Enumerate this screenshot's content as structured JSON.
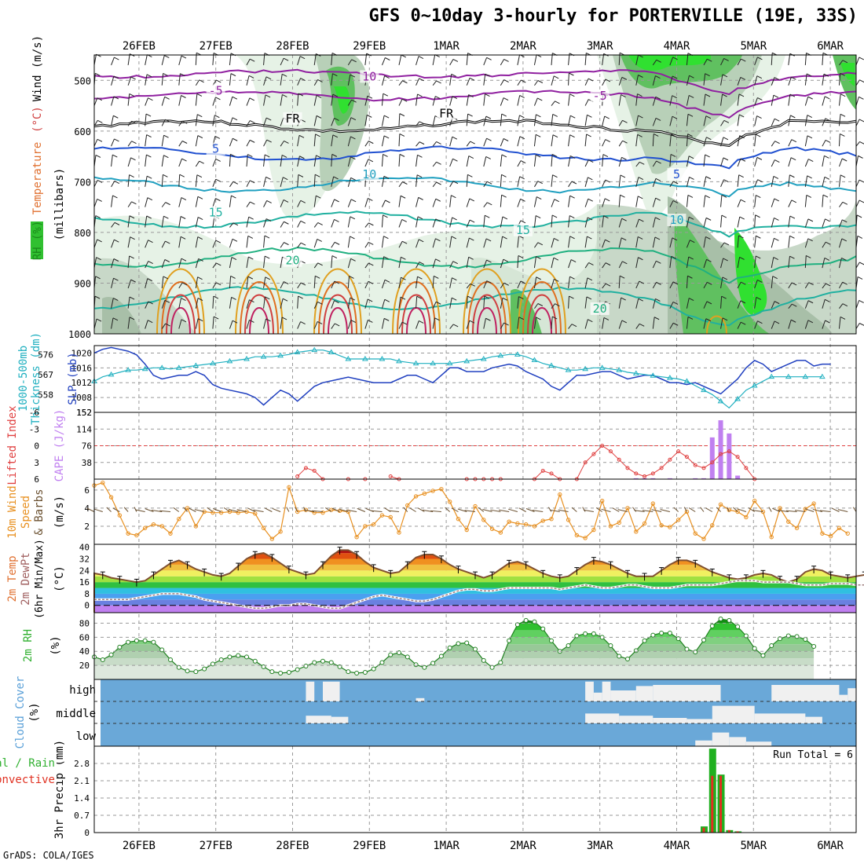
{
  "title": "GFS 0~10day 3-hourly for PORTERVILLE (19E, 33S)",
  "credit": "GrADS: COLA/IGES",
  "dates": [
    "26FEB",
    "27FEB",
    "28FEB",
    "29FEB",
    "1MAR",
    "2MAR",
    "3MAR",
    "4MAR",
    "5MAR",
    "6MAR"
  ],
  "chart_data": [
    {
      "type": "heatmap",
      "panel": "upper-air",
      "ylabel_parts": [
        {
          "text": "RH (%)",
          "color": "#1a8a1a"
        },
        {
          "text": "Temperature",
          "color": "#e07030"
        },
        {
          "text": "(°C)",
          "color": "#d04040"
        },
        {
          "text": "Wind (m/s)",
          "color": "#000000"
        }
      ],
      "yunits": "(millibars)",
      "pressure_ticks": [
        500,
        600,
        700,
        800,
        900,
        1000
      ],
      "ylim": [
        1000,
        450
      ],
      "isotherm_labels": [
        {
          "label": "10",
          "color": "#9020a0",
          "x": "29FEB",
          "p": 497
        },
        {
          "label": "-5",
          "color": "#9020a0",
          "x": "27FEB",
          "p": 525
        },
        {
          "label": "-5",
          "color": "#9020a0",
          "x": "3MAR",
          "p": 535
        },
        {
          "label": "FR",
          "color": "#000000",
          "x": "28FEB",
          "p": 580
        },
        {
          "label": "FR",
          "color": "#000000",
          "x": "1MAR",
          "p": 570
        },
        {
          "label": "5",
          "color": "#2050d0",
          "x": "27FEB",
          "p": 640
        },
        {
          "label": "5",
          "color": "#2050d0",
          "x": "4MAR",
          "p": 690
        },
        {
          "label": "10",
          "color": "#20a0c0",
          "x": "29FEB",
          "p": 690
        },
        {
          "label": "10",
          "color": "#20a0c0",
          "x": "4MAR",
          "p": 780
        },
        {
          "label": "15",
          "color": "#20b0a0",
          "x": "27FEB",
          "p": 765
        },
        {
          "label": "15",
          "color": "#20b0a0",
          "x": "2MAR",
          "p": 800
        },
        {
          "label": "20",
          "color": "#20b080",
          "x": "28FEB",
          "p": 860
        },
        {
          "label": "20",
          "color": "#20b080",
          "x": "3MAR",
          "p": 955
        }
      ]
    },
    {
      "type": "line",
      "panel": "slp-thickness",
      "ylabel_left": "1000-500mb Thickness (dm)",
      "ylabel_right": "SLP (mb)",
      "thickness_ticks": [
        558,
        567,
        576
      ],
      "slp_ticks": [
        1008,
        1012,
        1016,
        1020
      ],
      "series": [
        {
          "name": "SLP (mb)",
          "color": "#2040c0",
          "values": [
            1020,
            1021,
            1021.5,
            1021,
            1020.5,
            1019.5,
            1017,
            1014,
            1013,
            1013.5,
            1014,
            1014,
            1015,
            1014,
            1011.5,
            1010.5,
            1010,
            1009.5,
            1009,
            1008,
            1006,
            1008,
            1010,
            1009,
            1007,
            1009,
            1011,
            1012,
            1012.5,
            1013,
            1013.5,
            1013,
            1012.5,
            1012,
            1012,
            1012,
            1013,
            1014,
            1014,
            1013,
            1012,
            1014,
            1016,
            1016,
            1015,
            1015,
            1015,
            1016,
            1016.5,
            1017,
            1016.5,
            1015,
            1014,
            1013,
            1011,
            1010,
            1012,
            1014,
            1014,
            1014.5,
            1015,
            1015,
            1014,
            1013,
            1013.5,
            1014,
            1014,
            1013,
            1012,
            1012,
            1011.5,
            1012,
            1011,
            1010,
            1009,
            1011,
            1013,
            1016,
            1018,
            1017,
            1015,
            1016,
            1017,
            1018,
            1018,
            1016.5,
            1017,
            1017
          ]
        },
        {
          "name": "1000-500mb Thickness (dm)",
          "color": "#20b0c0",
          "values": [
            564,
            566,
            567,
            568,
            569,
            569,
            569.5,
            570,
            570,
            569.5,
            570,
            570.5,
            571,
            571.5,
            572,
            572.5,
            573,
            573.5,
            574,
            575,
            575,
            575,
            575.5,
            576,
            577,
            577.5,
            578,
            578,
            577,
            575.5,
            574,
            574,
            574,
            574,
            574,
            574,
            573,
            572.5,
            572,
            572,
            572,
            572,
            572,
            572.5,
            573,
            573.5,
            574,
            575,
            575.5,
            576,
            576,
            575,
            573.5,
            572,
            571,
            570,
            569,
            569,
            569.5,
            570,
            570,
            569.5,
            569,
            568,
            567.5,
            567,
            566.5,
            566,
            565.5,
            565,
            564,
            562,
            560,
            558,
            555,
            552,
            556,
            560,
            562,
            564,
            566,
            566,
            566,
            566,
            566,
            566,
            566
          ]
        }
      ]
    },
    {
      "type": "bar",
      "panel": "instability",
      "ylabel_left": "Lifted Index",
      "ylabel_right": "CAPE (J/kg)",
      "lifted_index_ticks": [
        -6,
        -3,
        0,
        3,
        6
      ],
      "cape_ticks": [
        38,
        76,
        114,
        152
      ],
      "series": [
        {
          "name": "Lifted Index",
          "color": "#e04040",
          "points": [
            [
              24,
              5.5
            ],
            [
              25,
              4
            ],
            [
              26,
              4.5
            ],
            [
              27,
              6
            ],
            [
              30,
              6
            ],
            [
              32,
              6
            ],
            [
              35,
              5.5
            ],
            [
              36,
              6
            ],
            [
              44,
              6
            ],
            [
              45,
              6
            ],
            [
              46,
              6
            ],
            [
              47,
              6
            ],
            [
              48,
              6
            ],
            [
              52,
              6
            ],
            [
              53,
              4.5
            ],
            [
              54,
              5
            ],
            [
              55,
              6
            ],
            [
              57,
              6
            ],
            [
              58,
              3
            ],
            [
              59,
              1.5
            ],
            [
              60,
              0
            ],
            [
              61,
              1
            ],
            [
              62,
              2.5
            ],
            [
              63,
              4
            ],
            [
              64,
              5
            ],
            [
              65,
              5.5
            ],
            [
              66,
              5
            ],
            [
              67,
              4
            ],
            [
              68,
              2.5
            ],
            [
              69,
              1
            ],
            [
              70,
              2
            ],
            [
              71,
              3.5
            ],
            [
              72,
              4
            ],
            [
              73,
              3
            ],
            [
              74,
              1.5
            ],
            [
              75,
              1
            ],
            [
              76,
              2
            ],
            [
              77,
              4
            ],
            [
              78,
              6
            ]
          ]
        },
        {
          "name": "CAPE (J/kg)",
          "color": "#c080f0",
          "points": [
            [
              64,
              2
            ],
            [
              65,
              2
            ],
            [
              66,
              2
            ],
            [
              68,
              2
            ],
            [
              71,
              2
            ],
            [
              72,
              2
            ],
            [
              73,
              95
            ],
            [
              74,
              134
            ],
            [
              75,
              104
            ],
            [
              76,
              8
            ]
          ]
        }
      ]
    },
    {
      "type": "line",
      "panel": "wind-10m",
      "ylabel": "10m Wind Speed (m/s) & Barbs",
      "yticks": [
        2,
        4,
        6
      ],
      "series": [
        {
          "name": "Speed",
          "color": "#e89020",
          "values": [
            6.5,
            6.8,
            5.2,
            3.2,
            1.2,
            1,
            1.8,
            2.2,
            2,
            1.2,
            2.8,
            4,
            2,
            3.6,
            3.5,
            3.5,
            3.6,
            3.5,
            3.6,
            3.4,
            1.8,
            0.6,
            1.4,
            6.3,
            3.6,
            3.8,
            3.5,
            3.5,
            3.8,
            3.7,
            3.6,
            0.8,
            2,
            2.2,
            3.2,
            3,
            1.3,
            4.3,
            5.3,
            5.6,
            5.9,
            6.1,
            4.7,
            2.8,
            1.6,
            4.2,
            2.7,
            1.7,
            1.3,
            2.5,
            2.3,
            2.2,
            2,
            2.6,
            2.8,
            5.5,
            2.7,
            1,
            0.7,
            1.6,
            4.8,
            2,
            2.4,
            4,
            1.4,
            2.3,
            4.5,
            2.1,
            1.9,
            2.7,
            3.6,
            1.2,
            0.6,
            2.1,
            4.4,
            3.8,
            3.6,
            3,
            4.8,
            3.6,
            0.8,
            4,
            2.5,
            1.8,
            3.9,
            4.5,
            1.2,
            0.9,
            1.8,
            1.2
          ]
        }
      ]
    },
    {
      "type": "area",
      "panel": "temperature-2m",
      "ylabel": "2m Temp 2m DewPt (6hr Min/Max) (°C)",
      "yticks": [
        0,
        8,
        16,
        24,
        32,
        40
      ],
      "series": [
        {
          "name": "2m Temp",
          "color": "#805030",
          "values": [
            22,
            21,
            19,
            18,
            17,
            16,
            17,
            21,
            25,
            29,
            31,
            28,
            25,
            23,
            21,
            20,
            22,
            27,
            32,
            35,
            36,
            33,
            29,
            25,
            23,
            21,
            22,
            28,
            34,
            38,
            38,
            35,
            30,
            26,
            24,
            22,
            23,
            28,
            33,
            35,
            35,
            32,
            28,
            25,
            23,
            21,
            19,
            21,
            25,
            29,
            30,
            28,
            25,
            22,
            20,
            19,
            20,
            24,
            28,
            31,
            30,
            28,
            25,
            22,
            20,
            20,
            20,
            24,
            28,
            31,
            31,
            29,
            26,
            23,
            21,
            19,
            18,
            19,
            21,
            22,
            21,
            18,
            16,
            18,
            23,
            25,
            24,
            21,
            20,
            19,
            20,
            21
          ]
        },
        {
          "name": "2m DewPt",
          "color": "#a08080",
          "values": [
            4,
            4,
            4,
            4,
            4,
            5,
            6,
            7,
            8,
            8,
            8,
            7,
            6,
            4,
            3,
            2,
            1,
            0,
            -1,
            -2,
            -2,
            -1,
            0,
            0,
            1,
            1,
            0,
            -1,
            -2,
            -2,
            0,
            2,
            4,
            6,
            7,
            6,
            5,
            4,
            3,
            3,
            4,
            6,
            8,
            10,
            11,
            11,
            10,
            10,
            11,
            12,
            12,
            12,
            12,
            12,
            12,
            11,
            12,
            13,
            14,
            13,
            12,
            12,
            13,
            14,
            14,
            13,
            12,
            12,
            12,
            13,
            14,
            14,
            14,
            14,
            15,
            16,
            17,
            17,
            17,
            16,
            16,
            16,
            16,
            15,
            14,
            14,
            14,
            15,
            15,
            15,
            14,
            14
          ]
        }
      ]
    },
    {
      "type": "area",
      "panel": "rh-2m",
      "ylabel": "2m RH (%)",
      "yticks": [
        20,
        40,
        60,
        80
      ],
      "series": [
        {
          "name": "2m RH",
          "color": "#208020",
          "values": [
            32,
            28,
            35,
            46,
            53,
            55,
            55,
            53,
            42,
            28,
            17,
            12,
            11,
            15,
            22,
            28,
            32,
            34,
            32,
            26,
            18,
            11,
            9,
            10,
            14,
            19,
            24,
            26,
            24,
            18,
            11,
            9,
            10,
            15,
            24,
            35,
            38,
            32,
            21,
            17,
            23,
            33,
            45,
            51,
            52,
            43,
            27,
            17,
            24,
            55,
            78,
            84,
            82,
            72,
            55,
            40,
            48,
            62,
            65,
            65,
            60,
            48,
            33,
            29,
            41,
            55,
            63,
            66,
            66,
            58,
            43,
            39,
            56,
            76,
            86,
            84,
            75,
            62,
            44,
            34,
            48,
            58,
            62,
            61,
            57,
            47
          ]
        }
      ]
    },
    {
      "type": "area",
      "panel": "cloud-cover",
      "ylabel": "Cloud Cover (%)",
      "levels": [
        "high",
        "middle",
        "low"
      ],
      "colors": {
        "background": "#6aa8d8",
        "cloud": "#f0f0f0"
      }
    },
    {
      "type": "bar",
      "panel": "precip-3hr",
      "ylabel_left": "Total / Rain",
      "ylabel_left2": "Convective",
      "ylabel": "3hr Precip (mm)",
      "yticks": [
        0,
        0.7,
        1.4,
        2.1,
        2.8
      ],
      "annotation": "Run Total = 6",
      "series": [
        {
          "name": "Total / Rain",
          "color": "#20b020",
          "points": [
            [
              72,
              0.25
            ],
            [
              73,
              3.4
            ],
            [
              74,
              2.35
            ],
            [
              75,
              0.1
            ],
            [
              76,
              0.05
            ]
          ]
        },
        {
          "name": "Convective",
          "color": "#e03020",
          "points": [
            [
              72,
              0.2
            ],
            [
              73,
              2.3
            ],
            [
              74,
              2.3
            ],
            [
              75,
              0.1
            ],
            [
              76,
              0.05
            ]
          ]
        }
      ]
    }
  ]
}
